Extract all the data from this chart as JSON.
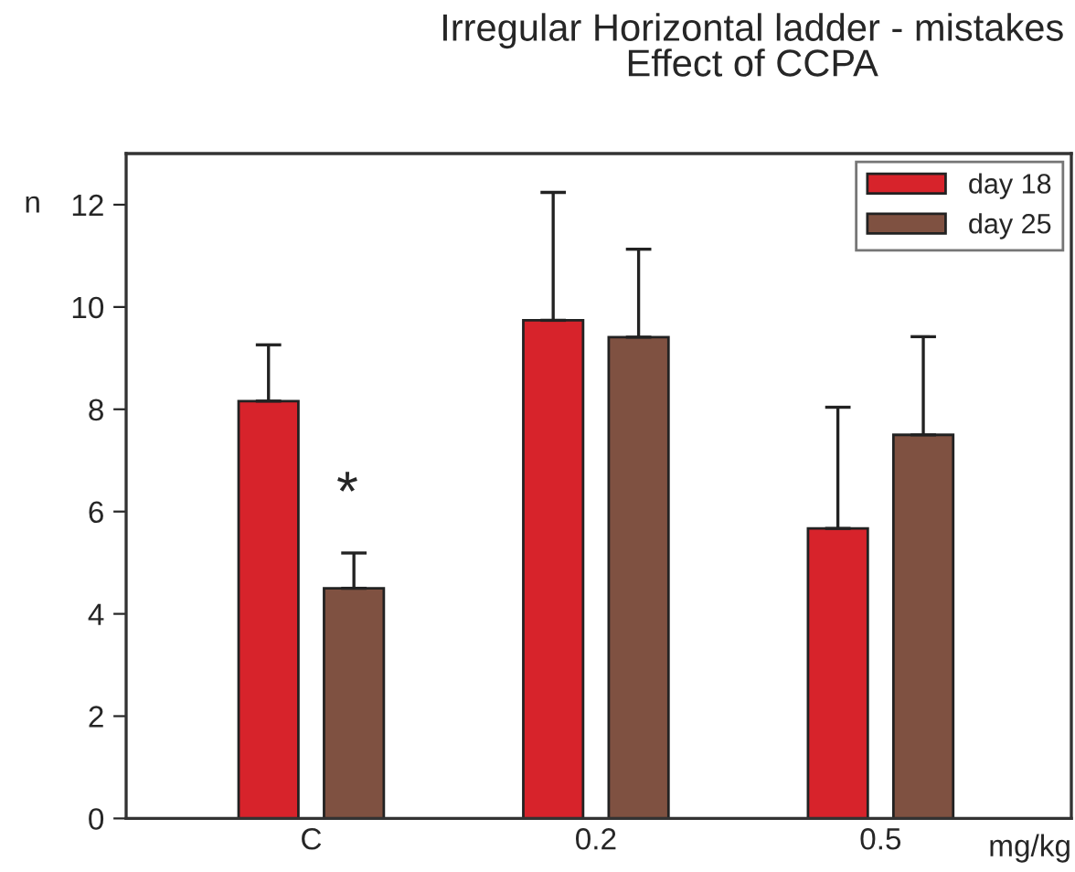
{
  "chart_data": {
    "type": "bar",
    "title": "Irregular Horizontal ladder - mistakes\nEffect of CCPA",
    "ylabel": "n",
    "xlabel": "mg/kg",
    "categories": [
      "C",
      "0.2",
      "0.5"
    ],
    "series": [
      {
        "name": "day 18",
        "color": "#d7232b",
        "values": [
          8.16,
          9.74,
          5.67
        ],
        "errors": [
          [
            8.16,
            9.26
          ],
          [
            9.74,
            12.24
          ],
          [
            5.67,
            8.04
          ]
        ]
      },
      {
        "name": "day 25",
        "color": "#7f5141",
        "values": [
          4.5,
          9.41,
          7.5
        ],
        "errors": [
          [
            4.5,
            5.19
          ],
          [
            9.41,
            11.13
          ],
          [
            7.5,
            9.42
          ]
        ]
      }
    ],
    "annotations": [
      "*"
    ],
    "ylim": [
      0,
      13
    ],
    "yticks": [
      0,
      2,
      4,
      6,
      8,
      10,
      12
    ],
    "grid": false,
    "legend": "top right"
  }
}
